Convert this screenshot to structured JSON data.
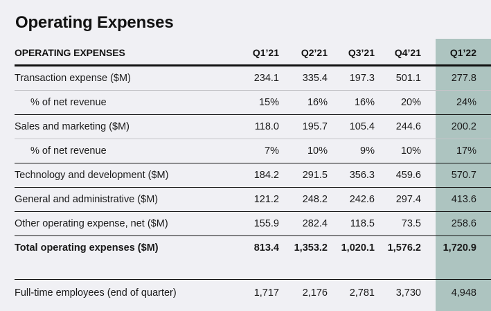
{
  "title": "Operating Expenses",
  "colors": {
    "background": "#f0f0f4",
    "highlight_column": "#adc4c0",
    "text": "#1a1a1a"
  },
  "table": {
    "header": {
      "label": "OPERATING EXPENSES",
      "columns": [
        "Q1’21",
        "Q2’21",
        "Q3’21",
        "Q4’21",
        "Q1’22"
      ]
    },
    "rows": [
      {
        "label": "Transaction expense ($M)",
        "values": [
          "234.1",
          "335.4",
          "197.3",
          "501.1",
          "277.8"
        ]
      },
      {
        "label": "% of net revenue",
        "values": [
          "15%",
          "16%",
          "16%",
          "20%",
          "24%"
        ]
      },
      {
        "label": "Sales and marketing ($M)",
        "values": [
          "118.0",
          "195.7",
          "105.4",
          "244.6",
          "200.2"
        ]
      },
      {
        "label": "% of net revenue",
        "values": [
          "7%",
          "10%",
          "9%",
          "10%",
          "17%"
        ]
      },
      {
        "label": "Technology and development ($M)",
        "values": [
          "184.2",
          "291.5",
          "356.3",
          "459.6",
          "570.7"
        ]
      },
      {
        "label": "General and administrative ($M)",
        "values": [
          "121.2",
          "248.2",
          "242.6",
          "297.4",
          "413.6"
        ]
      },
      {
        "label": "Other operating expense, net ($M)",
        "values": [
          "155.9",
          "282.4",
          "118.5",
          "73.5",
          "258.6"
        ]
      },
      {
        "label": "Total operating expenses ($M)",
        "values": [
          "813.4",
          "1,353.2",
          "1,020.1",
          "1,576.2",
          "1,720.9"
        ]
      },
      {
        "label": "Full-time employees (end of quarter)",
        "values": [
          "1,717",
          "2,176",
          "2,781",
          "3,730",
          "4,948"
        ]
      }
    ]
  }
}
